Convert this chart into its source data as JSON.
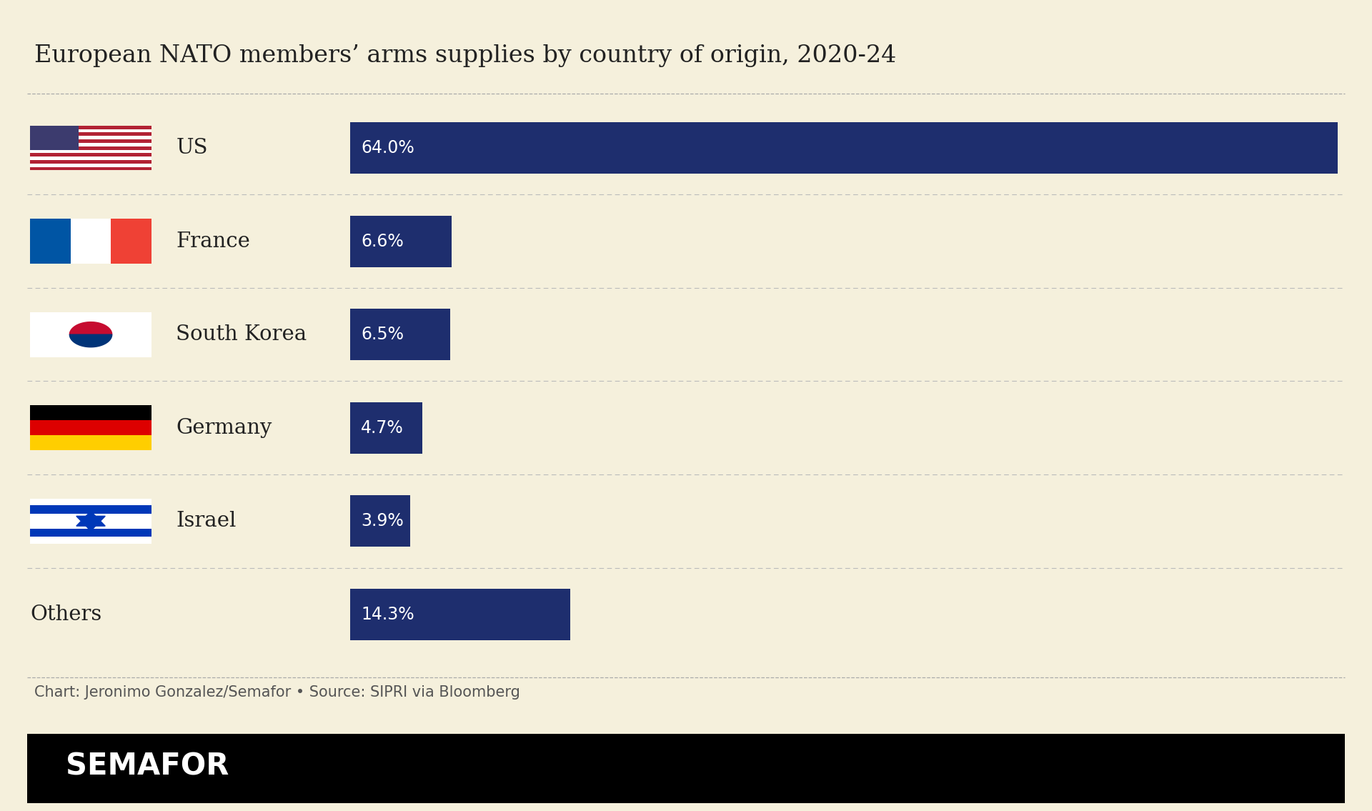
{
  "title": "European NATO members’ arms supplies by country of origin, 2020-24",
  "categories": [
    "US",
    "France",
    "South Korea",
    "Germany",
    "Israel",
    "Others"
  ],
  "values": [
    64.0,
    6.6,
    6.5,
    4.7,
    3.9,
    14.3
  ],
  "labels": [
    "64.0%",
    "6.6%",
    "6.5%",
    "4.7%",
    "3.9%",
    "14.3%"
  ],
  "bar_color": "#1e2e6e",
  "bg_color": "#f5f0dc",
  "text_color": "#222222",
  "caption": "Chart: Jeronimo Gonzalez/Semafor • Source: SIPRI via Bloomberg",
  "max_value": 64.0,
  "title_fontsize": 24,
  "label_fontsize": 17,
  "category_fontsize": 21,
  "caption_fontsize": 15,
  "semafor_fontsize": 30
}
